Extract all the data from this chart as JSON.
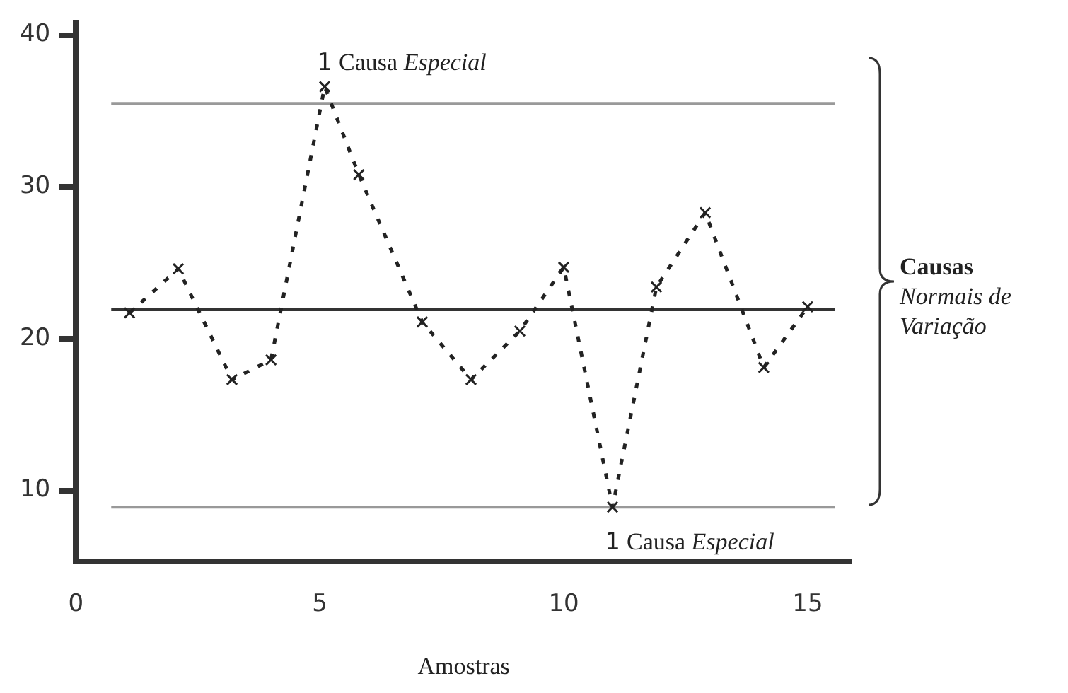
{
  "chart_data": {
    "type": "line",
    "xlabel": "Amostras",
    "x": [
      1.1,
      2.1,
      3.2,
      4.0,
      5.1,
      5.8,
      7.1,
      8.1,
      9.1,
      10.0,
      11.0,
      11.9,
      12.9,
      14.1,
      15.0
    ],
    "series": [
      {
        "color": "#222222",
        "values": [
          21.7,
          24.6,
          17.3,
          18.6,
          36.6,
          30.8,
          21.1,
          17.3,
          20.5,
          24.7,
          8.9,
          23.4,
          28.3,
          18.1,
          22.1
        ]
      }
    ],
    "xlim": [
      0,
      15.9
    ],
    "ylim": [
      5.3,
      40.8
    ],
    "xticks": [
      0,
      5,
      10,
      15
    ],
    "yticks": [
      10,
      20,
      30,
      40
    ],
    "ref_lines": [
      {
        "axis": "y",
        "value": 35.5,
        "color": "#999999"
      },
      {
        "axis": "y",
        "value": 21.9,
        "color": "#333333"
      },
      {
        "axis": "y",
        "value": 8.9,
        "color": "#999999"
      }
    ],
    "annotations": [
      {
        "text": "1 Causa Especial",
        "x": 5.1,
        "y": 36.6
      },
      {
        "text": "1 Causa Especial",
        "x": 11.0,
        "y": 8.9
      },
      "Causas Normais de Variação"
    ],
    "grid": false,
    "legend": false,
    "marker": "cross",
    "line_style": "dashed"
  }
}
